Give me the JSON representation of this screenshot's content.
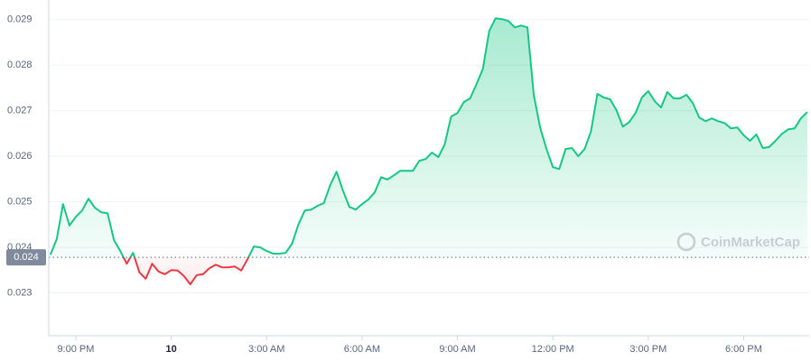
{
  "chart_data": {
    "type": "line",
    "x": [
      -3.8,
      -3.6,
      -3.4,
      -3.2,
      -3.0,
      -2.8,
      -2.6,
      -2.4,
      -2.2,
      -2.0,
      -1.8,
      -1.6,
      -1.4,
      -1.2,
      -1.0,
      -0.8,
      -0.6,
      -0.4,
      -0.2,
      0.0,
      0.2,
      0.4,
      0.6,
      0.8,
      1.0,
      1.2,
      1.4,
      1.6,
      1.8,
      2.0,
      2.2,
      2.4,
      2.6,
      2.8,
      3.0,
      3.2,
      3.4,
      3.6,
      3.8,
      4.0,
      4.2,
      4.4,
      4.6,
      4.8,
      5.0,
      5.2,
      5.4,
      5.6,
      5.8,
      6.0,
      6.2,
      6.4,
      6.6,
      6.8,
      7.0,
      7.2,
      7.4,
      7.6,
      7.8,
      8.0,
      8.2,
      8.4,
      8.6,
      8.8,
      9.0,
      9.2,
      9.4,
      9.6,
      9.8,
      10.0,
      10.2,
      10.4,
      10.6,
      10.8,
      11.0,
      11.2,
      11.4,
      11.6,
      11.8,
      12.0,
      12.2,
      12.4,
      12.6,
      12.8,
      13.0,
      13.2,
      13.4,
      13.6,
      13.8,
      14.0,
      14.2,
      14.4,
      14.6,
      14.8,
      15.0,
      15.2,
      15.4,
      15.6,
      15.8,
      16.0,
      16.2,
      16.4,
      16.6,
      16.8,
      17.0,
      17.2,
      17.4,
      17.6,
      17.8,
      18.0,
      18.2,
      18.4,
      18.6,
      18.8,
      19.0,
      19.2,
      19.4,
      19.6,
      19.8,
      20.0
    ],
    "series": [
      {
        "color": "#16c784",
        "color_below": "#ea3943",
        "values": [
          0.02384,
          0.02418,
          0.02495,
          0.02448,
          0.02467,
          0.02481,
          0.02507,
          0.02487,
          0.02477,
          0.02475,
          0.02416,
          0.02392,
          0.02364,
          0.02388,
          0.02345,
          0.02331,
          0.02364,
          0.02347,
          0.02341,
          0.0235,
          0.02349,
          0.02337,
          0.02319,
          0.02339,
          0.02341,
          0.02354,
          0.02362,
          0.02356,
          0.02356,
          0.02358,
          0.02349,
          0.02374,
          0.02402,
          0.024,
          0.02392,
          0.02386,
          0.02386,
          0.02388,
          0.02408,
          0.0245,
          0.02481,
          0.02483,
          0.02491,
          0.02497,
          0.02537,
          0.02566,
          0.02525,
          0.02489,
          0.02483,
          0.02495,
          0.02505,
          0.02521,
          0.02554,
          0.02549,
          0.02558,
          0.02568,
          0.02568,
          0.02568,
          0.0259,
          0.02594,
          0.02608,
          0.02598,
          0.02626,
          0.02687,
          0.02695,
          0.02719,
          0.02727,
          0.02758,
          0.02792,
          0.02875,
          0.02903,
          0.02901,
          0.02897,
          0.02883,
          0.02887,
          0.02883,
          0.02735,
          0.02663,
          0.02616,
          0.02576,
          0.02572,
          0.02616,
          0.02618,
          0.026,
          0.02616,
          0.02655,
          0.02737,
          0.02729,
          0.02725,
          0.02701,
          0.02665,
          0.02675,
          0.02695,
          0.02729,
          0.02743,
          0.02721,
          0.02707,
          0.02741,
          0.02727,
          0.02727,
          0.02735,
          0.02717,
          0.02685,
          0.02677,
          0.02683,
          0.02677,
          0.02673,
          0.02661,
          0.02663,
          0.02646,
          0.02634,
          0.02648,
          0.02618,
          0.0262,
          0.02634,
          0.02649,
          0.02659,
          0.02661,
          0.02683,
          0.02697
        ]
      }
    ],
    "xlim": [
      -3.85,
      20.06
    ],
    "xticks": [
      {
        "value": -3,
        "label": "9:00 PM"
      },
      {
        "value": 0,
        "label": "10"
      },
      {
        "value": 3,
        "label": "3:00 AM"
      },
      {
        "value": 6,
        "label": "6:00 AM"
      },
      {
        "value": 9,
        "label": "9:00 AM"
      },
      {
        "value": 12,
        "label": "12:00 PM"
      },
      {
        "value": 15,
        "label": "3:00 PM"
      },
      {
        "value": 18,
        "label": "6:00 PM"
      }
    ],
    "ylim": [
      0.02206,
      0.02943
    ],
    "yticks": [
      0.023,
      0.024,
      0.025,
      0.026,
      0.027,
      0.028,
      0.029
    ],
    "grid": true,
    "reference": {
      "value": 0.02378,
      "label": "0.024"
    },
    "watermark": "CoinMarketCap"
  }
}
